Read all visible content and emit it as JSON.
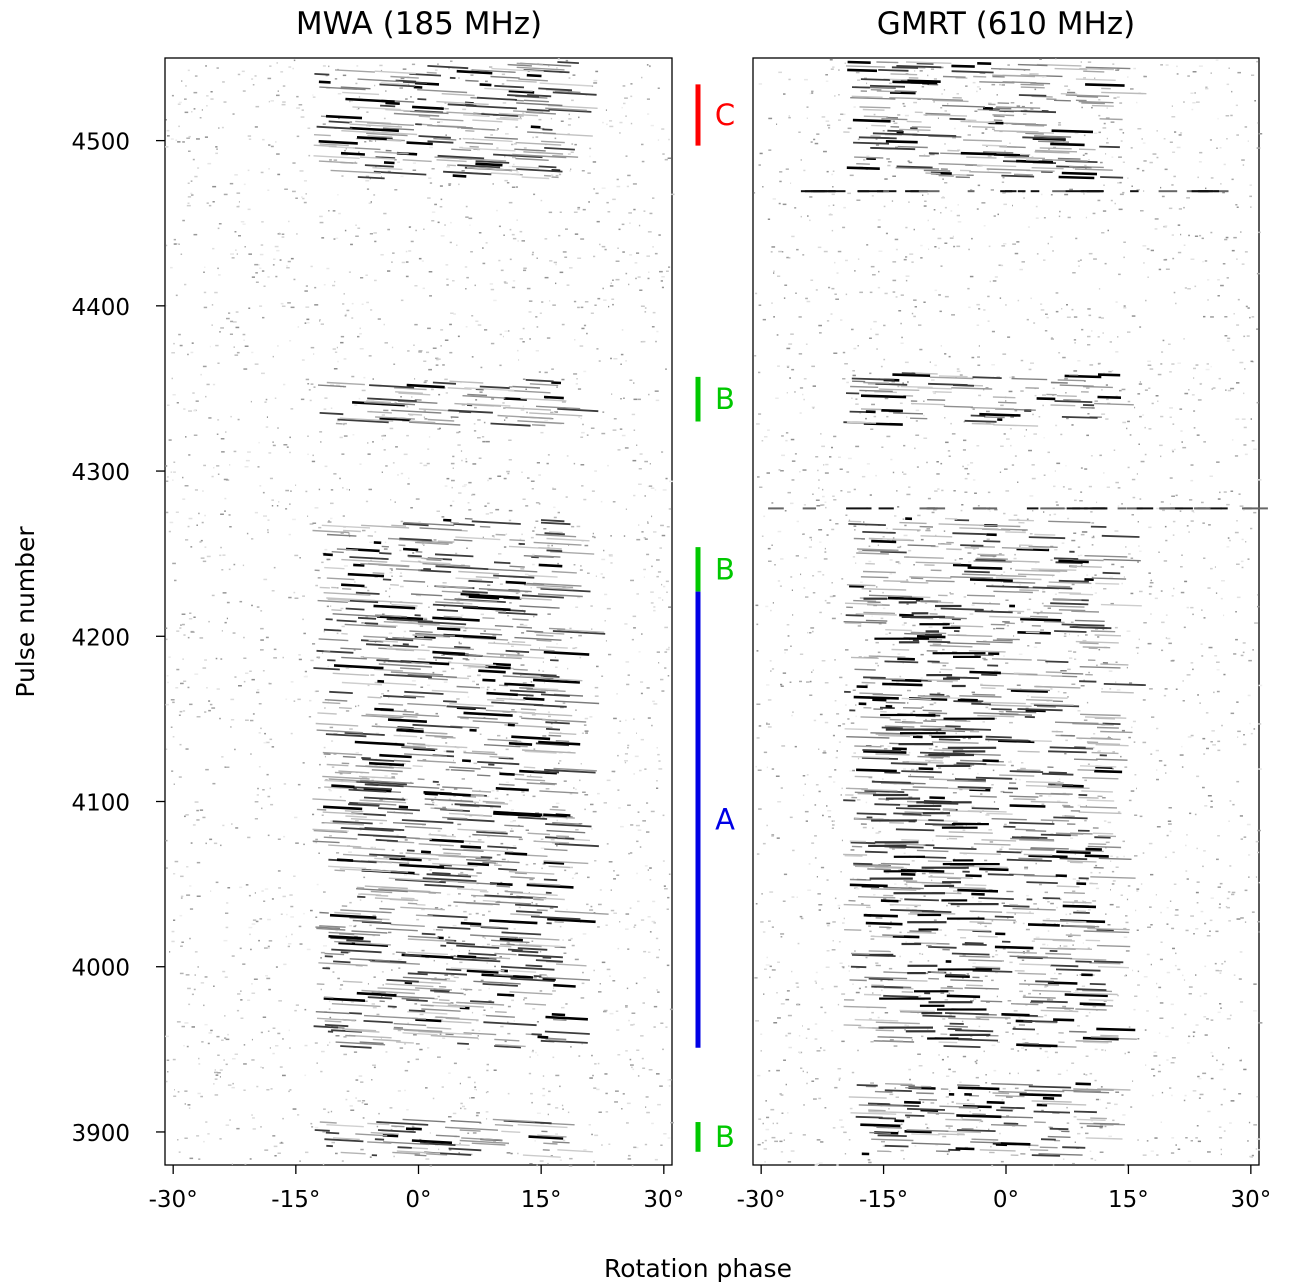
{
  "chart_data": [
    {
      "type": "heatmap",
      "title": "MWA (185 MHz)",
      "xlabel": "Rotation phase",
      "ylabel": "Pulse number",
      "xlim": [
        -31,
        31
      ],
      "ylim": [
        3880,
        4550
      ],
      "xticks": [
        -30,
        -15,
        0,
        15,
        30
      ],
      "xtick_labels": [
        "-30°",
        "-15°",
        "0°",
        "15°",
        "30°"
      ],
      "yticks": [
        3900,
        4000,
        4100,
        4200,
        4300,
        4400,
        4500
      ],
      "ytick_labels": [
        "3900",
        "4000",
        "4100",
        "4200",
        "4300",
        "4400",
        "4500"
      ],
      "colormap": "greyscale (white = low, black = high intensity)",
      "emission_pulse_ranges": [
        [
          3886,
          3908
        ],
        [
          3952,
          4272
        ],
        [
          4328,
          4356
        ],
        [
          4478,
          4548
        ]
      ],
      "emission_phase_range": [
        -13,
        17
      ],
      "drift": "drifting subpulses, phase decreasing with increasing pulse number"
    },
    {
      "type": "heatmap",
      "title": "GMRT (610 MHz)",
      "xlabel": "Rotation phase",
      "ylabel": "Pulse number",
      "xlim": [
        -31,
        31
      ],
      "ylim": [
        3880,
        4550
      ],
      "xticks": [
        -30,
        -15,
        0,
        15,
        30
      ],
      "xtick_labels": [
        "-30°",
        "-15°",
        "0°",
        "15°",
        "30°"
      ],
      "colormap": "greyscale (white = low, black = high intensity)",
      "emission_pulse_ranges": [
        [
          3886,
          3930
        ],
        [
          3952,
          4272
        ],
        [
          4328,
          4360
        ],
        [
          4478,
          4548
        ]
      ],
      "emission_phase_range": [
        -20,
        12
      ],
      "rfi_rows": [
        4470,
        4278
      ],
      "drift": "strong emission concentrated near -15° to -5°"
    }
  ],
  "mode_markers": [
    {
      "label": "C",
      "color": "#ff0000",
      "pulse_start": 4497,
      "pulse_end": 4534
    },
    {
      "label": "B",
      "color": "#00c800",
      "pulse_start": 4330,
      "pulse_end": 4357
    },
    {
      "label": "B",
      "color": "#00c800",
      "pulse_start": 4227,
      "pulse_end": 4254
    },
    {
      "label": "A",
      "color": "#0000e6",
      "pulse_start": 3951,
      "pulse_end": 4227
    },
    {
      "label": "B",
      "color": "#00c800",
      "pulse_start": 3888,
      "pulse_end": 3906
    }
  ]
}
